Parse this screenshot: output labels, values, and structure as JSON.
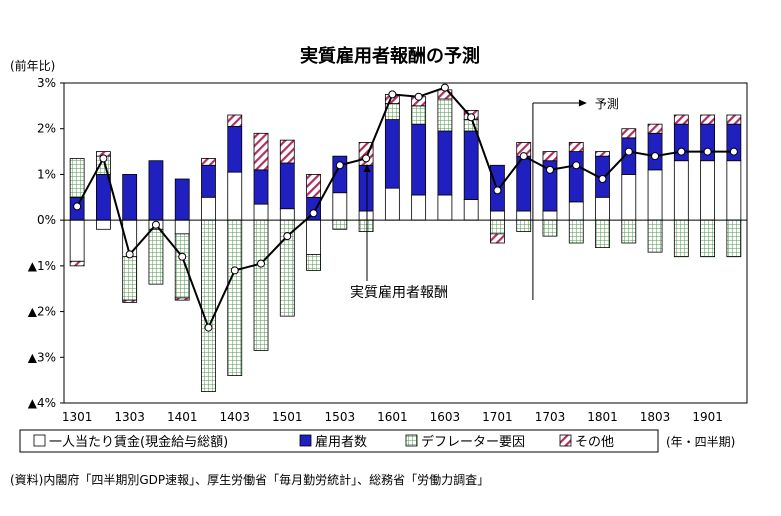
{
  "chart_data": {
    "type": "bar",
    "title": "実質雇用者報酬の予測",
    "ylabel": "(前年比)",
    "xlabel": "(年・四半期)",
    "ylim": [
      -4,
      3
    ],
    "y_ticks": [
      3,
      2,
      1,
      0,
      -1,
      -2,
      -3,
      -4
    ],
    "y_tick_labels": [
      "3%",
      "2%",
      "1%",
      "0%",
      "▲1%",
      "▲2%",
      "▲3%",
      "▲4%"
    ],
    "categories": [
      "1301",
      "1302",
      "1303",
      "1304",
      "1401",
      "1402",
      "1403",
      "1404",
      "1501",
      "1502",
      "1503",
      "1504",
      "1601",
      "1602",
      "1603",
      "1604",
      "1701",
      "1702",
      "1703",
      "1704",
      "1801",
      "1802",
      "1803",
      "1804",
      "1901",
      "1902"
    ],
    "x_tick_labels": [
      "1301",
      "1303",
      "1401",
      "1403",
      "1501",
      "1503",
      "1601",
      "1603",
      "1701",
      "1703",
      "1801",
      "1803",
      "1901"
    ],
    "stacked": true,
    "series": [
      {
        "name": "一人当たり賃金(現金給与総額)",
        "color": "#ffffff",
        "pattern": "none",
        "values": [
          -0.9,
          -0.2,
          -0.8,
          -0.2,
          -0.3,
          0.5,
          1.05,
          0.35,
          0.25,
          -0.75,
          0.6,
          0.2,
          0.7,
          0.55,
          0.55,
          0.45,
          0.2,
          0.2,
          0.2,
          0.4,
          0.5,
          1.0,
          1.1,
          1.3,
          1.3,
          1.3
        ]
      },
      {
        "name": "雇用者数",
        "color": "#2020c0",
        "pattern": "none",
        "values": [
          0.5,
          1.0,
          1.0,
          1.3,
          0.9,
          0.7,
          1.0,
          0.75,
          1.0,
          0.5,
          0.8,
          1.0,
          1.5,
          1.55,
          1.4,
          1.5,
          1.0,
          1.2,
          1.1,
          1.1,
          0.9,
          0.8,
          0.8,
          0.8,
          0.8,
          0.8
        ]
      },
      {
        "name": "デフレーター要因",
        "color": "#5aa05a",
        "pattern": "grid",
        "values": [
          0.85,
          0.4,
          -0.95,
          -1.2,
          -1.4,
          -3.75,
          -3.4,
          -2.85,
          -2.1,
          -0.35,
          -0.2,
          -0.25,
          0.35,
          0.4,
          0.7,
          0.25,
          -0.3,
          -0.25,
          -0.35,
          -0.5,
          -0.6,
          -0.5,
          -0.7,
          -0.8,
          -0.8,
          -0.8
        ]
      },
      {
        "name": "その他",
        "color": "#b03060",
        "pattern": "hatch",
        "values": [
          -0.1,
          0.1,
          -0.05,
          0.0,
          -0.05,
          0.15,
          0.25,
          0.8,
          0.5,
          0.5,
          0.0,
          0.5,
          0.2,
          0.2,
          0.2,
          0.2,
          -0.2,
          0.3,
          0.2,
          0.2,
          0.1,
          0.2,
          0.2,
          0.2,
          0.2,
          0.2
        ]
      }
    ],
    "line": {
      "name": "実質雇用者報酬",
      "values": [
        0.3,
        1.35,
        -0.75,
        -0.1,
        -0.8,
        -2.35,
        -1.1,
        -0.95,
        -0.35,
        0.15,
        1.2,
        1.35,
        2.75,
        2.7,
        2.9,
        2.25,
        0.65,
        1.4,
        1.1,
        1.2,
        0.9,
        1.5,
        1.4,
        1.5,
        1.5,
        1.5
      ]
    },
    "forecast_label": "予測",
    "forecast_start_index": 18,
    "annotation": "実質雇用者報酬",
    "legend_position": "bottom",
    "grid": false
  },
  "source_note": "(資料)内閣府「四半期別GDP速報」、厚生労働省「毎月勤労統計」、総務省「労働力調査」"
}
